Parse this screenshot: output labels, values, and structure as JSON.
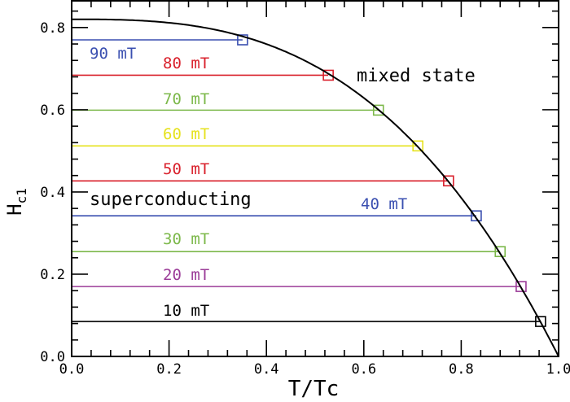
{
  "chart_data": {
    "type": "line",
    "title": "",
    "xlabel": "T/Tc",
    "ylabel_main": "H",
    "ylabel_sub": "c1",
    "xlim": [
      0.0,
      1.0
    ],
    "ylim": [
      0.0,
      0.865
    ],
    "xticks": [
      "0.0",
      "0.2",
      "0.4",
      "0.6",
      "0.8",
      "1.0"
    ],
    "xtick_values": [
      0.0,
      0.2,
      0.4,
      0.6,
      0.8,
      1.0
    ],
    "yticks": [
      "0.0",
      "0.2",
      "0.4",
      "0.6",
      "0.8"
    ],
    "ytick_values": [
      0.0,
      0.2,
      0.4,
      0.6,
      0.8
    ],
    "grid": false,
    "curve": {
      "name": "Hc1(T)",
      "h0": 0.82,
      "exponent": 2.85,
      "color": "#000000"
    },
    "series": [
      {
        "name": "90 mT",
        "h": 0.77,
        "t_cross": 0.351,
        "color": "#3a4fb0"
      },
      {
        "name": "80 mT",
        "h": 0.684,
        "t_cross": 0.527,
        "color": "#d9202b"
      },
      {
        "name": "70 mT",
        "h": 0.599,
        "t_cross": 0.63,
        "color": "#7cb84a"
      },
      {
        "name": "60 mT",
        "h": 0.512,
        "t_cross": 0.711,
        "color": "#e6e21e"
      },
      {
        "name": "50 mT",
        "h": 0.427,
        "t_cross": 0.774,
        "color": "#d9202b"
      },
      {
        "name": "40 mT",
        "h": 0.342,
        "t_cross": 0.831,
        "color": "#3a4fb0"
      },
      {
        "name": "30 mT",
        "h": 0.255,
        "t_cross": 0.88,
        "color": "#7cb84a"
      },
      {
        "name": "20 mT",
        "h": 0.17,
        "t_cross": 0.923,
        "color": "#9b3c98"
      },
      {
        "name": "10 mT",
        "h": 0.085,
        "t_cross": 0.963,
        "color": "#000000"
      }
    ],
    "annotations": {
      "mixed": "mixed state",
      "super": "superconducting"
    }
  }
}
